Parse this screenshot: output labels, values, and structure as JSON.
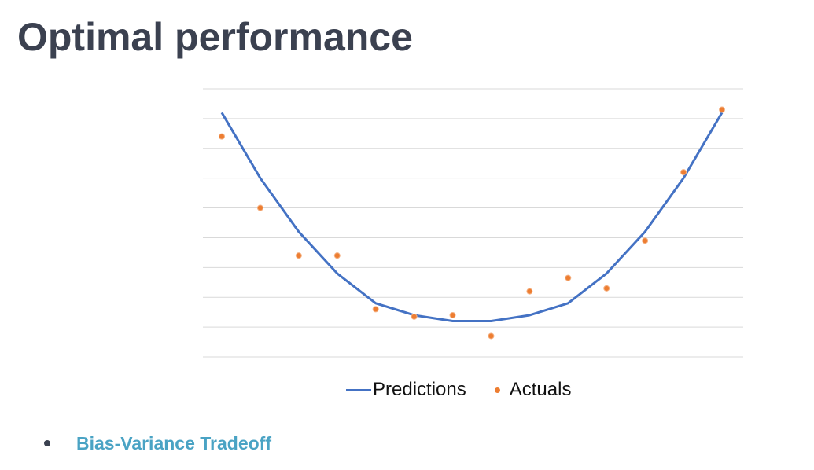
{
  "slide": {
    "title": "Optimal performance"
  },
  "chart_data": {
    "type": "line",
    "title": "",
    "xlabel": "",
    "ylabel": "",
    "x": [
      1,
      2,
      3,
      4,
      5,
      6,
      7,
      8,
      9,
      10,
      11,
      12,
      13,
      14
    ],
    "ylim": [
      0,
      9
    ],
    "grid": true,
    "legend_position": "bottom",
    "series": [
      {
        "name": "Predictions",
        "type": "line",
        "color": "#4472c4",
        "values": [
          8.2,
          6.0,
          4.2,
          2.8,
          1.8,
          1.4,
          1.2,
          1.2,
          1.4,
          1.8,
          2.8,
          4.2,
          6.0,
          8.2
        ]
      },
      {
        "name": "Actuals",
        "type": "scatter",
        "color": "#ed7d31",
        "values": [
          7.4,
          5.0,
          3.4,
          3.4,
          1.6,
          1.35,
          1.4,
          0.7,
          2.2,
          2.65,
          2.3,
          3.9,
          6.2,
          8.3
        ]
      }
    ]
  },
  "bullets": [
    {
      "label": "Bias-Variance Tradeoff"
    }
  ]
}
